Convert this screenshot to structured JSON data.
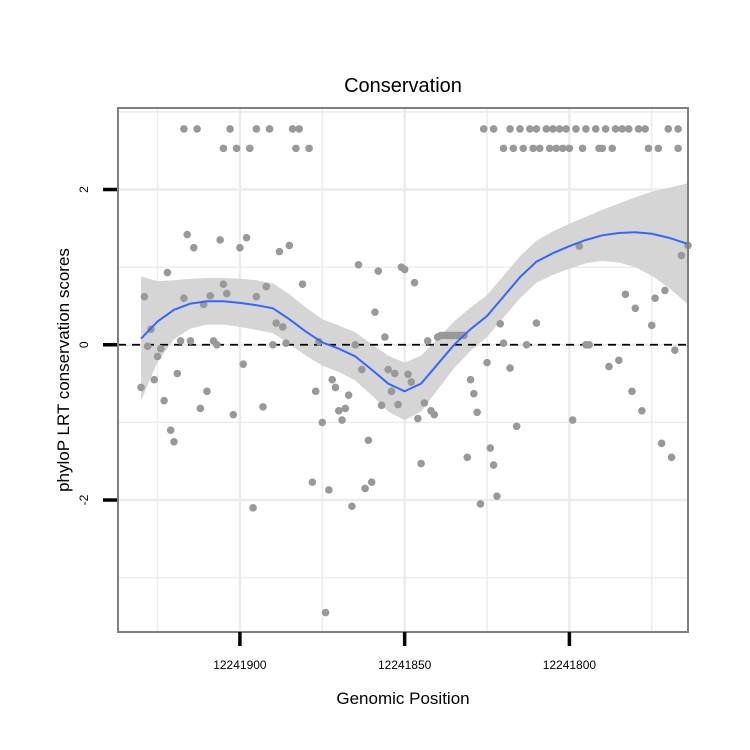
{
  "chart_data": {
    "type": "scatter",
    "title": "Conservation",
    "xlabel": "Genomic Position",
    "ylabel": "phyloP LRT conservation scores",
    "x_reversed": true,
    "xlim": [
      12241937,
      12241764
    ],
    "ylim": [
      -3.7,
      3.05
    ],
    "xticks": [
      12241900,
      12241850,
      12241800
    ],
    "xtick_labels": [
      "12241900",
      "12241850",
      "12241800"
    ],
    "yticks": [
      -2,
      0,
      2
    ],
    "ytick_labels": [
      "-2",
      "0",
      "2"
    ],
    "grid": true,
    "reference_line": {
      "y": 0,
      "style": "dashed"
    },
    "colors": {
      "points": "#999999",
      "smooth": "#3366FF",
      "band": "#D3D3D3",
      "grid": "#EBEBEB",
      "panel_border": "#7F7F7F"
    },
    "points": [
      [
        12241930,
        -0.55
      ],
      [
        12241929,
        0.62
      ],
      [
        12241928,
        -0.02
      ],
      [
        12241927,
        0.2
      ],
      [
        12241926,
        -0.45
      ],
      [
        12241925,
        -0.15
      ],
      [
        12241924,
        -0.05
      ],
      [
        12241923,
        -0.72
      ],
      [
        12241922,
        0.93
      ],
      [
        12241921,
        -1.1
      ],
      [
        12241920,
        -1.25
      ],
      [
        12241919,
        -0.37
      ],
      [
        12241918,
        0.05
      ],
      [
        12241917,
        0.6
      ],
      [
        12241917,
        2.78
      ],
      [
        12241916,
        1.42
      ],
      [
        12241915,
        0.05
      ],
      [
        12241914,
        1.25
      ],
      [
        12241913,
        2.78
      ],
      [
        12241912,
        -0.82
      ],
      [
        12241911,
        0.52
      ],
      [
        12241910,
        -0.6
      ],
      [
        12241909,
        0.63
      ],
      [
        12241908,
        0.05
      ],
      [
        12241907,
        0.0
      ],
      [
        12241906,
        1.35
      ],
      [
        12241905,
        0.78
      ],
      [
        12241905,
        2.53
      ],
      [
        12241904,
        0.66
      ],
      [
        12241903,
        2.78
      ],
      [
        12241902,
        -0.9
      ],
      [
        12241901,
        2.53
      ],
      [
        12241900,
        1.25
      ],
      [
        12241899,
        -0.25
      ],
      [
        12241898,
        1.38
      ],
      [
        12241897,
        2.53
      ],
      [
        12241896,
        -2.1
      ],
      [
        12241895,
        0.62
      ],
      [
        12241895,
        2.78
      ],
      [
        12241893,
        -0.8
      ],
      [
        12241892,
        0.75
      ],
      [
        12241891,
        2.78
      ],
      [
        12241890,
        0.0
      ],
      [
        12241889,
        0.28
      ],
      [
        12241888,
        1.2
      ],
      [
        12241887,
        0.23
      ],
      [
        12241886,
        0.02
      ],
      [
        12241885,
        1.28
      ],
      [
        12241884,
        2.78
      ],
      [
        12241883,
        2.53
      ],
      [
        12241882,
        2.78
      ],
      [
        12241881,
        0.78
      ],
      [
        12241879,
        2.53
      ],
      [
        12241878,
        -1.77
      ],
      [
        12241877,
        -0.6
      ],
      [
        12241876,
        0.04
      ],
      [
        12241875,
        -1.0
      ],
      [
        12241874,
        -3.45
      ],
      [
        12241873,
        -1.87
      ],
      [
        12241872,
        -0.45
      ],
      [
        12241871,
        -0.55
      ],
      [
        12241870,
        -0.85
      ],
      [
        12241869,
        -0.97
      ],
      [
        12241868,
        -0.82
      ],
      [
        12241867,
        -0.65
      ],
      [
        12241866,
        -2.08
      ],
      [
        12241865,
        0.0
      ],
      [
        12241864,
        1.03
      ],
      [
        12241863,
        -0.32
      ],
      [
        12241862,
        -1.85
      ],
      [
        12241861,
        -1.23
      ],
      [
        12241860,
        -1.77
      ],
      [
        12241859,
        0.42
      ],
      [
        12241858,
        0.95
      ],
      [
        12241857,
        -0.78
      ],
      [
        12241856,
        0.1
      ],
      [
        12241855,
        -0.32
      ],
      [
        12241854,
        -0.6
      ],
      [
        12241853,
        -0.37
      ],
      [
        12241852,
        -0.77
      ],
      [
        12241851,
        1.0
      ],
      [
        12241850,
        0.97
      ],
      [
        12241849,
        -0.38
      ],
      [
        12241848,
        -0.48
      ],
      [
        12241847,
        0.8
      ],
      [
        12241846,
        -0.95
      ],
      [
        12241845,
        -1.53
      ],
      [
        12241844,
        -0.75
      ],
      [
        12241843,
        0.05
      ],
      [
        12241842,
        -0.85
      ],
      [
        12241841,
        -0.9
      ],
      [
        12241840,
        0.1
      ],
      [
        12241839,
        0.12
      ],
      [
        12241838,
        0.12
      ],
      [
        12241837,
        0.12
      ],
      [
        12241836,
        0.12
      ],
      [
        12241835,
        0.12
      ],
      [
        12241834,
        0.12
      ],
      [
        12241833,
        0.12
      ],
      [
        12241832,
        0.12
      ],
      [
        12241831,
        -1.45
      ],
      [
        12241830,
        -0.45
      ],
      [
        12241829,
        -0.63
      ],
      [
        12241828,
        -0.87
      ],
      [
        12241827,
        -2.05
      ],
      [
        12241826,
        2.78
      ],
      [
        12241825,
        -0.23
      ],
      [
        12241824,
        -1.33
      ],
      [
        12241823,
        -1.55
      ],
      [
        12241823,
        2.78
      ],
      [
        12241822,
        -1.95
      ],
      [
        12241821,
        0.27
      ],
      [
        12241820,
        0.02
      ],
      [
        12241820,
        2.53
      ],
      [
        12241818,
        -0.3
      ],
      [
        12241818,
        2.78
      ],
      [
        12241817,
        2.53
      ],
      [
        12241816,
        -1.05
      ],
      [
        12241815,
        2.78
      ],
      [
        12241814,
        2.53
      ],
      [
        12241813,
        0.0
      ],
      [
        12241812,
        2.78
      ],
      [
        12241811,
        2.53
      ],
      [
        12241810,
        0.28
      ],
      [
        12241810,
        2.78
      ],
      [
        12241809,
        2.53
      ],
      [
        12241807,
        2.78
      ],
      [
        12241806,
        2.53
      ],
      [
        12241805,
        2.78
      ],
      [
        12241804,
        2.53
      ],
      [
        12241803,
        2.78
      ],
      [
        12241802,
        2.53
      ],
      [
        12241801,
        2.78
      ],
      [
        12241800,
        2.53
      ],
      [
        12241799,
        -0.97
      ],
      [
        12241798,
        2.78
      ],
      [
        12241797,
        1.27
      ],
      [
        12241796,
        2.53
      ],
      [
        12241795,
        0.0
      ],
      [
        12241795,
        2.78
      ],
      [
        12241794,
        0.0
      ],
      [
        12241792,
        2.78
      ],
      [
        12241791,
        2.53
      ],
      [
        12241790,
        2.53
      ],
      [
        12241789,
        2.78
      ],
      [
        12241788,
        -0.28
      ],
      [
        12241787,
        2.53
      ],
      [
        12241786,
        2.78
      ],
      [
        12241785,
        -0.2
      ],
      [
        12241784,
        2.78
      ],
      [
        12241783,
        0.65
      ],
      [
        12241782,
        2.78
      ],
      [
        12241781,
        -0.6
      ],
      [
        12241780,
        0.47
      ],
      [
        12241779,
        2.78
      ],
      [
        12241778,
        -0.85
      ],
      [
        12241777,
        2.78
      ],
      [
        12241776,
        2.53
      ],
      [
        12241775,
        0.25
      ],
      [
        12241774,
        0.6
      ],
      [
        12241773,
        2.53
      ],
      [
        12241772,
        -1.27
      ],
      [
        12241771,
        0.7
      ],
      [
        12241770,
        2.78
      ],
      [
        12241769,
        -1.45
      ],
      [
        12241768,
        -0.07
      ],
      [
        12241767,
        2.53
      ],
      [
        12241767,
        2.78
      ],
      [
        12241766,
        1.15
      ],
      [
        12241764,
        1.28
      ]
    ],
    "smooth": [
      [
        12241930,
        0.08
      ],
      [
        12241925,
        0.3
      ],
      [
        12241920,
        0.45
      ],
      [
        12241915,
        0.53
      ],
      [
        12241910,
        0.56
      ],
      [
        12241905,
        0.56
      ],
      [
        12241900,
        0.54
      ],
      [
        12241895,
        0.51
      ],
      [
        12241890,
        0.47
      ],
      [
        12241885,
        0.33
      ],
      [
        12241880,
        0.17
      ],
      [
        12241875,
        0.03
      ],
      [
        12241870,
        -0.05
      ],
      [
        12241865,
        -0.15
      ],
      [
        12241860,
        -0.32
      ],
      [
        12241855,
        -0.5
      ],
      [
        12241850,
        -0.6
      ],
      [
        12241845,
        -0.5
      ],
      [
        12241840,
        -0.25
      ],
      [
        12241835,
        0.0
      ],
      [
        12241830,
        0.2
      ],
      [
        12241825,
        0.37
      ],
      [
        12241820,
        0.62
      ],
      [
        12241815,
        0.87
      ],
      [
        12241810,
        1.07
      ],
      [
        12241805,
        1.18
      ],
      [
        12241800,
        1.27
      ],
      [
        12241795,
        1.35
      ],
      [
        12241790,
        1.41
      ],
      [
        12241785,
        1.44
      ],
      [
        12241780,
        1.45
      ],
      [
        12241775,
        1.43
      ],
      [
        12241770,
        1.38
      ],
      [
        12241764,
        1.3
      ]
    ],
    "band_halfwidth": [
      [
        12241930,
        0.8
      ],
      [
        12241925,
        0.52
      ],
      [
        12241920,
        0.38
      ],
      [
        12241915,
        0.32
      ],
      [
        12241910,
        0.3
      ],
      [
        12241905,
        0.3
      ],
      [
        12241900,
        0.31
      ],
      [
        12241895,
        0.32
      ],
      [
        12241890,
        0.32
      ],
      [
        12241885,
        0.32
      ],
      [
        12241880,
        0.31
      ],
      [
        12241875,
        0.3
      ],
      [
        12241870,
        0.3
      ],
      [
        12241865,
        0.31
      ],
      [
        12241860,
        0.33
      ],
      [
        12241855,
        0.36
      ],
      [
        12241850,
        0.37
      ],
      [
        12241845,
        0.36
      ],
      [
        12241840,
        0.33
      ],
      [
        12241835,
        0.3
      ],
      [
        12241830,
        0.28
      ],
      [
        12241825,
        0.27
      ],
      [
        12241820,
        0.27
      ],
      [
        12241815,
        0.27
      ],
      [
        12241810,
        0.27
      ],
      [
        12241805,
        0.28
      ],
      [
        12241800,
        0.29
      ],
      [
        12241795,
        0.3
      ],
      [
        12241790,
        0.33
      ],
      [
        12241785,
        0.38
      ],
      [
        12241780,
        0.45
      ],
      [
        12241775,
        0.54
      ],
      [
        12241770,
        0.64
      ],
      [
        12241764,
        0.78
      ]
    ]
  }
}
